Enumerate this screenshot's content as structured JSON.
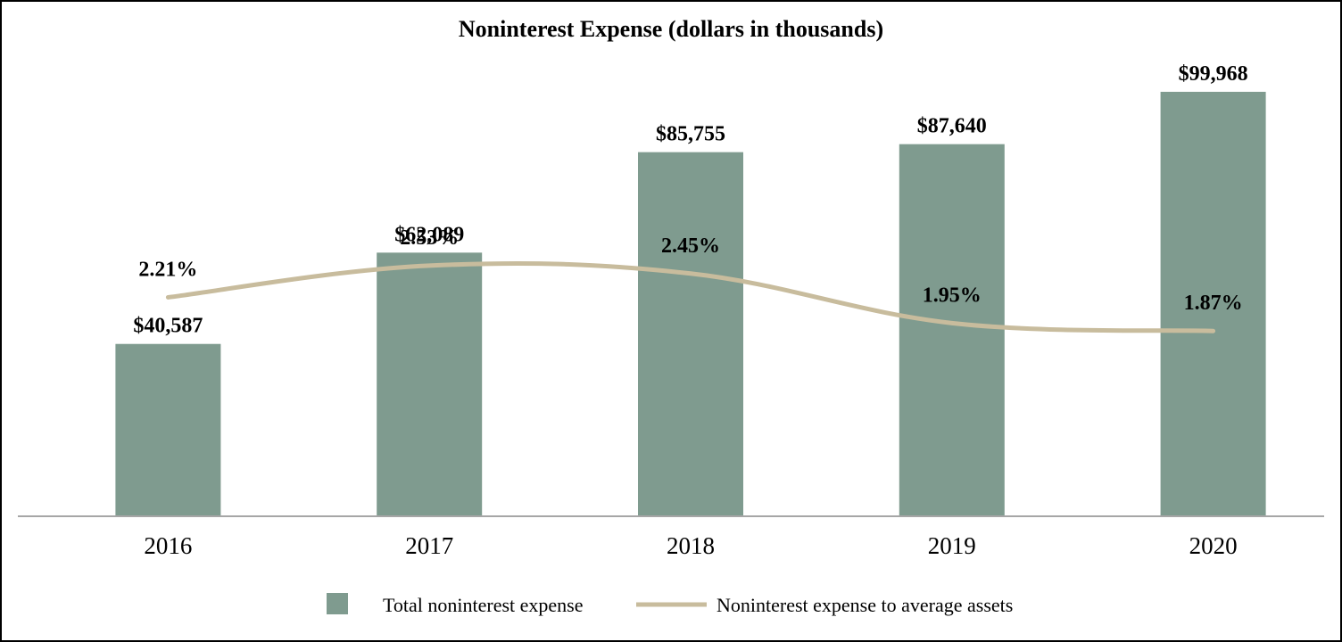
{
  "chart_data": {
    "type": "bar",
    "title": "Noninterest Expense (dollars in thousands)",
    "categories": [
      "2016",
      "2017",
      "2018",
      "2019",
      "2020"
    ],
    "xlabel": "",
    "ylabel": "",
    "grid": false,
    "legend_position": "bottom",
    "series": [
      {
        "name": "Total noninterest expense",
        "kind": "bar",
        "values": [
          40587,
          62089,
          85755,
          87640,
          99968
        ],
        "labels": [
          "$40,587",
          "$62,089",
          "$85,755",
          "$87,640",
          "$99,968"
        ],
        "ylim": [
          0,
          105000
        ],
        "color": "#7F9B8F"
      },
      {
        "name": "Noninterest expense to average assets",
        "kind": "line",
        "values": [
          2.21,
          2.53,
          2.45,
          1.95,
          1.87
        ],
        "labels": [
          "2.21%",
          "2.53%",
          "2.45%",
          "1.95%",
          "1.87%"
        ],
        "ylim": [
          0,
          4.5
        ],
        "color": "#C8BC9D"
      }
    ],
    "axis_color": "#A6A6A6",
    "text_color": "#000000"
  }
}
